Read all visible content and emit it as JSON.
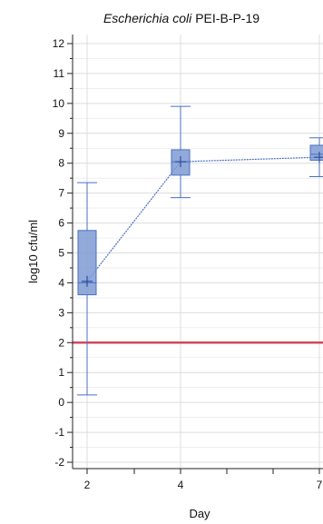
{
  "chart_data": {
    "type": "box",
    "title": {
      "species": "Escherichia coli",
      "strain": "PEI-B-P-19"
    },
    "xlabel": "Day",
    "ylabel": "log10 cfu/ml",
    "ylim": [
      -2,
      12
    ],
    "yticks": [
      -2,
      -1,
      0,
      1,
      2,
      3,
      4,
      5,
      6,
      7,
      8,
      9,
      10,
      11,
      12
    ],
    "xticks": [
      "2",
      "4",
      "7"
    ],
    "grid": true,
    "boxes": [
      {
        "day": 2,
        "min": 0.25,
        "q1": 3.6,
        "median": 4.0,
        "q3": 5.75,
        "max": 7.35,
        "mean": 4.05
      },
      {
        "day": 4,
        "min": 6.85,
        "q1": 7.6,
        "median": 8.05,
        "q3": 8.45,
        "max": 9.9,
        "mean": 8.05
      },
      {
        "day": 7,
        "min": 7.55,
        "q1": 8.1,
        "median": 8.3,
        "q3": 8.6,
        "max": 8.85,
        "mean": 8.2
      }
    ],
    "reference_line": {
      "y": 2,
      "color": "#d04a5e"
    },
    "colors": {
      "box_fill": "#7f9bd3",
      "box_stroke": "#4a6fc0",
      "grid": "#dcdcdc",
      "axis": "#222222"
    }
  }
}
